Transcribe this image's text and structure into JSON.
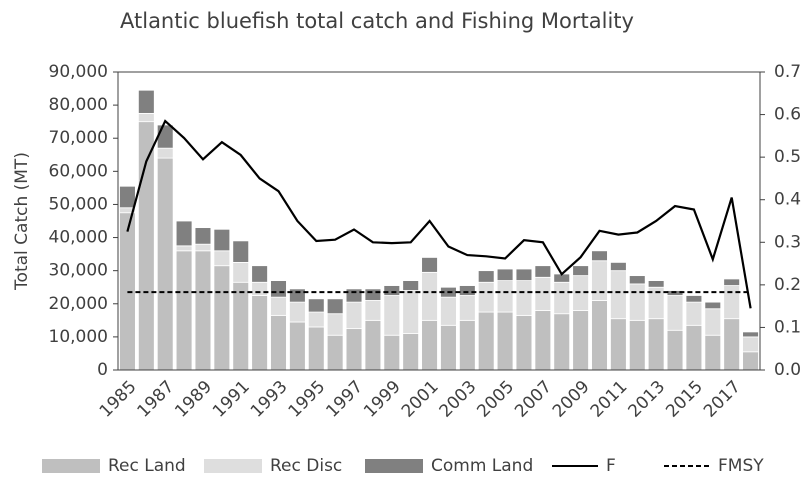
{
  "chart_data": {
    "type": "bar-line",
    "title": "Atlantic bluefish total catch and Fishing Mortality",
    "ylabel": "Total Catch (MT)",
    "categories": [
      "1985",
      null,
      "1987",
      null,
      "1989",
      null,
      "1991",
      null,
      "1993",
      null,
      "1995",
      null,
      "1997",
      null,
      "1999",
      null,
      "2001",
      null,
      "2003",
      null,
      "2005",
      null,
      "2007",
      null,
      "2009",
      null,
      "2011",
      null,
      "2013",
      null,
      "2015",
      null,
      "2017",
      null
    ],
    "ylim": [
      0,
      90000
    ],
    "yticks": [
      0,
      {
        "value": 10000,
        "label": "10,000"
      },
      {
        "value": 20000,
        "label": "20,000"
      },
      {
        "value": 30000,
        "label": "30,000"
      },
      {
        "value": 40000,
        "label": "40,000"
      },
      {
        "value": 50000,
        "label": "50,000"
      },
      {
        "value": 60000,
        "label": "60,000"
      },
      {
        "value": 70000,
        "label": "70,000"
      },
      {
        "value": 80000,
        "label": "80,000"
      },
      {
        "value": 90000,
        "label": "90,000"
      }
    ],
    "y2lim": [
      0,
      0.7
    ],
    "y2ticks": [
      {
        "value": 0,
        "label": "0.0"
      },
      0.1,
      0.2,
      0.3,
      0.4,
      0.5,
      0.6,
      0.7
    ],
    "stacked": true,
    "series": [
      {
        "name": "Rec Land",
        "kind": "bar",
        "color": "#bfbfbf",
        "values": [
          47500,
          75000,
          64000,
          36000,
          36000,
          31500,
          26500,
          22500,
          16500,
          14500,
          13000,
          10500,
          12500,
          15000,
          10500,
          11000,
          15000,
          13500,
          15000,
          17500,
          17500,
          16500,
          18000,
          17000,
          18000,
          21000,
          15500,
          15000,
          15500,
          12000,
          13500,
          10500,
          15500,
          5500
        ]
      },
      {
        "name": "Rec Disc",
        "kind": "bar",
        "color": "#dedede",
        "values": [
          1500,
          2500,
          3000,
          1500,
          2000,
          4500,
          6000,
          4000,
          5500,
          6000,
          4500,
          6500,
          8000,
          6000,
          12000,
          13000,
          14500,
          8500,
          7500,
          9000,
          9500,
          10500,
          10000,
          9500,
          10500,
          12000,
          14500,
          11000,
          9500,
          10500,
          7000,
          8000,
          10000,
          4500
        ]
      },
      {
        "name": "Comm Land",
        "kind": "bar",
        "color": "#808080",
        "values": [
          6500,
          7000,
          7000,
          7500,
          5000,
          6500,
          6500,
          5000,
          5000,
          4000,
          4000,
          4500,
          4000,
          3500,
          3000,
          3000,
          4500,
          3000,
          3000,
          3500,
          3500,
          3500,
          3500,
          2500,
          3000,
          3000,
          2500,
          2500,
          2000,
          1500,
          2000,
          2000,
          2000,
          1500
        ]
      },
      {
        "name": "F",
        "kind": "line",
        "axis": "y2",
        "color": "#000000",
        "dash": false,
        "values": [
          0.325,
          0.49,
          0.585,
          0.545,
          0.495,
          0.535,
          0.505,
          0.45,
          0.42,
          0.35,
          0.303,
          0.306,
          0.33,
          0.3,
          0.298,
          0.3,
          0.35,
          0.29,
          0.27,
          0.267,
          0.262,
          0.305,
          0.3,
          0.225,
          0.265,
          0.327,
          0.318,
          0.323,
          0.35,
          0.385,
          0.377,
          0.26,
          0.405,
          0.145
        ]
      },
      {
        "name": "FMSY",
        "kind": "line",
        "axis": "y2",
        "color": "#000000",
        "dash": true,
        "values": [
          0.183,
          0.183,
          0.183,
          0.183,
          0.183,
          0.183,
          0.183,
          0.183,
          0.183,
          0.183,
          0.183,
          0.183,
          0.183,
          0.183,
          0.183,
          0.183,
          0.183,
          0.183,
          0.183,
          0.183,
          0.183,
          0.183,
          0.183,
          0.183,
          0.183,
          0.183,
          0.183,
          0.183,
          0.183,
          0.183,
          0.183,
          0.183,
          0.183,
          0.183
        ]
      }
    ],
    "legend": "bottom"
  }
}
